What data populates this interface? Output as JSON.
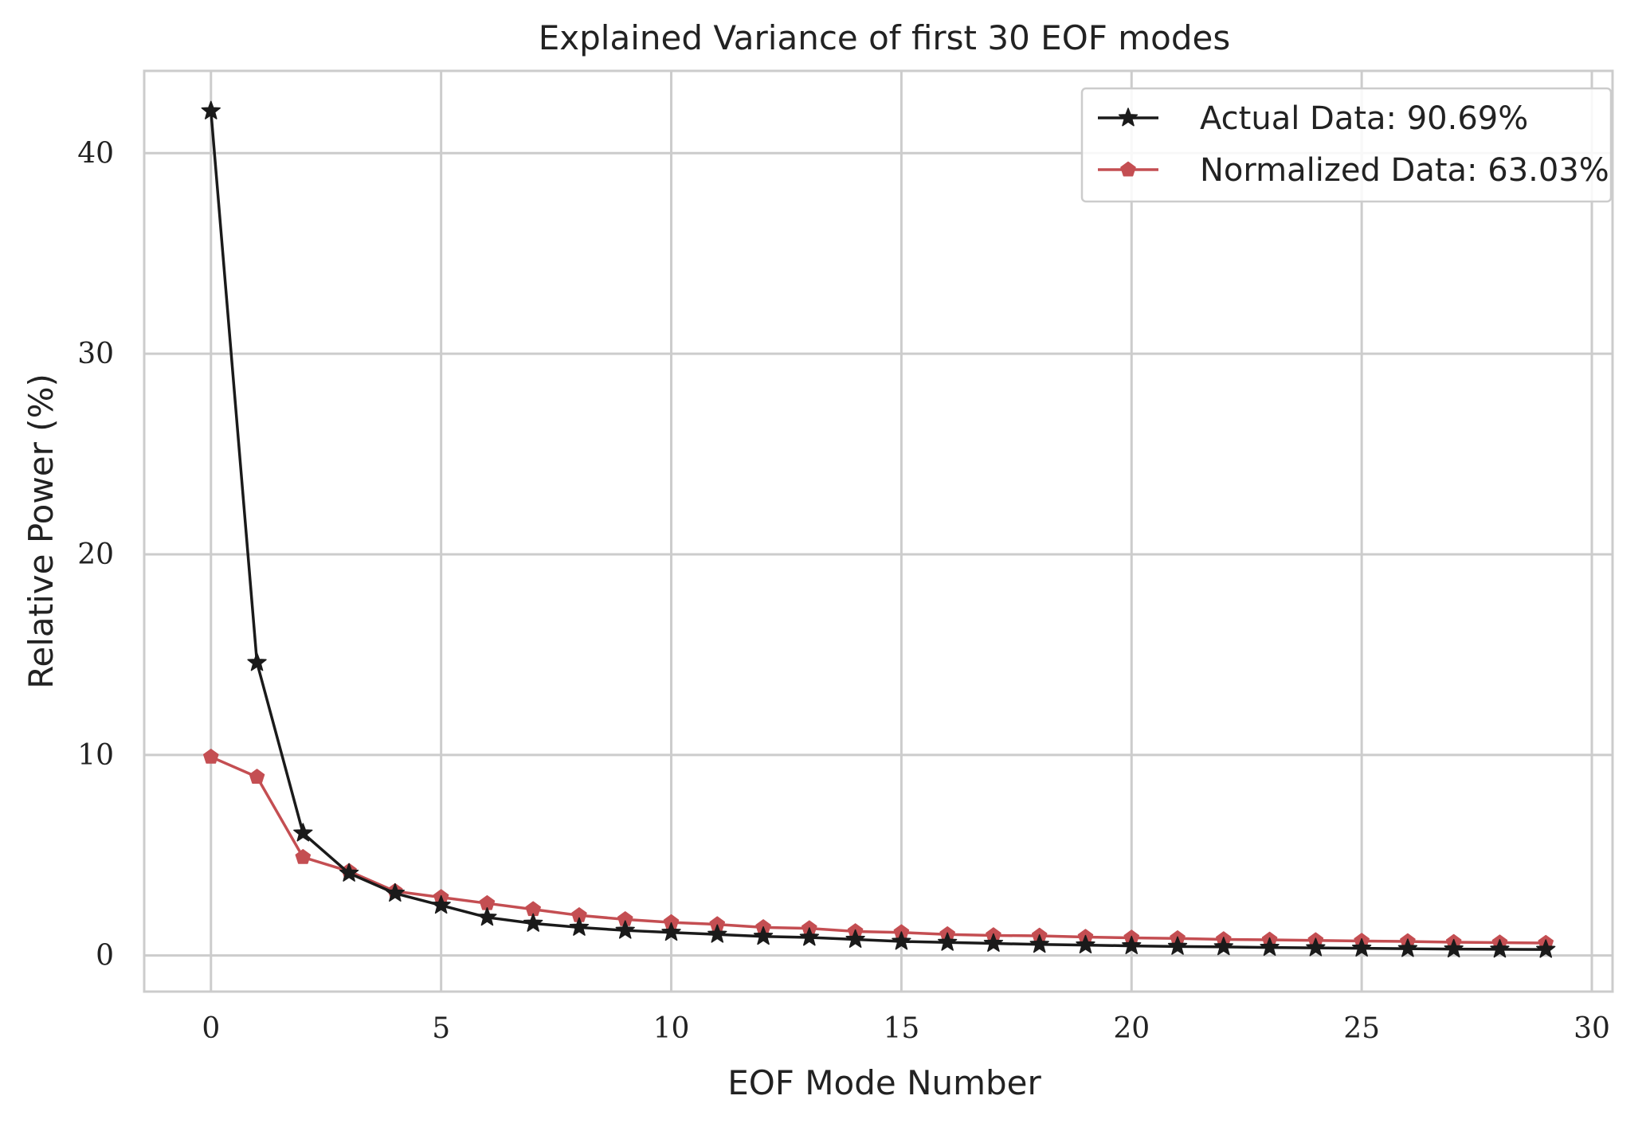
{
  "chart_data": {
    "type": "line",
    "title": "Explained Variance of first 30 EOF modes",
    "xlabel": "EOF Mode Number",
    "ylabel": "Relative Power (%)",
    "xlim": [
      -1.45,
      30.45
    ],
    "ylim": [
      -1.8,
      44.1
    ],
    "xticks": [
      0,
      5,
      10,
      15,
      20,
      25,
      30
    ],
    "yticks": [
      0,
      10,
      20,
      30,
      40
    ],
    "grid": true,
    "legend_position": "upper right",
    "x": [
      0,
      1,
      2,
      3,
      4,
      5,
      6,
      7,
      8,
      9,
      10,
      11,
      12,
      13,
      14,
      15,
      16,
      17,
      18,
      19,
      20,
      21,
      22,
      23,
      24,
      25,
      26,
      27,
      28,
      29
    ],
    "series": [
      {
        "name": "Actual Data: 90.69%",
        "color": "#1a1a1a",
        "marker": "star",
        "values": [
          42.1,
          14.6,
          6.1,
          4.1,
          3.1,
          2.5,
          1.9,
          1.6,
          1.4,
          1.25,
          1.15,
          1.05,
          0.95,
          0.9,
          0.8,
          0.7,
          0.65,
          0.6,
          0.55,
          0.52,
          0.48,
          0.45,
          0.43,
          0.4,
          0.38,
          0.36,
          0.34,
          0.32,
          0.31,
          0.3
        ]
      },
      {
        "name": "Normalized Data: 63.03%",
        "color": "#c44e52",
        "marker": "pentagon",
        "values": [
          9.9,
          8.9,
          4.9,
          4.2,
          3.2,
          2.9,
          2.6,
          2.3,
          2.0,
          1.8,
          1.65,
          1.55,
          1.4,
          1.35,
          1.2,
          1.15,
          1.05,
          1.0,
          0.98,
          0.92,
          0.88,
          0.85,
          0.8,
          0.78,
          0.75,
          0.72,
          0.7,
          0.66,
          0.64,
          0.62
        ]
      }
    ]
  }
}
